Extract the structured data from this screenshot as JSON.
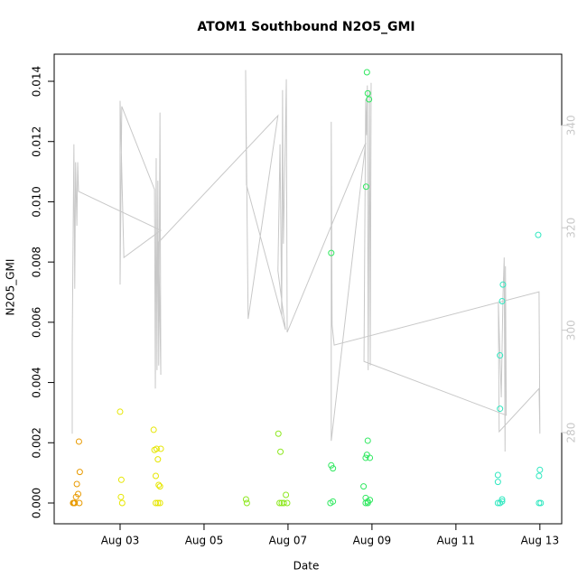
{
  "chart_data": {
    "type": "scatter",
    "title": "ATOM1 Southbound N2O5_GMI",
    "xlabel": "Date",
    "ylabel": "N2O5_GMI",
    "xlim": [
      1.43,
      13.52
    ],
    "xticks": [
      {
        "value": 3,
        "label": "Aug 03"
      },
      {
        "value": 5,
        "label": "Aug 05"
      },
      {
        "value": 7,
        "label": "Aug 07"
      },
      {
        "value": 9,
        "label": "Aug 09"
      },
      {
        "value": 11,
        "label": "Aug 11"
      },
      {
        "value": 13,
        "label": "Aug 13"
      }
    ],
    "ylim": [
      -0.00069,
      0.0149
    ],
    "yticks": [
      {
        "value": 0,
        "label": "0.000"
      },
      {
        "value": 0.002,
        "label": "0.002"
      },
      {
        "value": 0.004,
        "label": "0.004"
      },
      {
        "value": 0.006,
        "label": "0.006"
      },
      {
        "value": 0.008,
        "label": "0.008"
      },
      {
        "value": 0.01,
        "label": "0.010"
      },
      {
        "value": 0.012,
        "label": "0.012"
      },
      {
        "value": 0.014,
        "label": "0.014"
      }
    ],
    "y2lim": [
      262.2,
      353.9
    ],
    "y2ticks": [
      280,
      300,
      320,
      340
    ],
    "y2color": "#c8c8c8",
    "series": [
      {
        "type": "line",
        "axis": "y2",
        "color": "#c8c8c8",
        "x": [
          1.86,
          1.86,
          1.9,
          1.92,
          1.94,
          1.97,
          1.99,
          2.01,
          3.97,
          3.09,
          3.0,
          3.0,
          3.04,
          3.82,
          3.84,
          3.86,
          3.88,
          3.9,
          3.92,
          3.95,
          3.97,
          3.92,
          6.76,
          6.05,
          5.99,
          6.01,
          6.94,
          6.76,
          6.81,
          6.85,
          6.87,
          6.89,
          6.94,
          6.96,
          6.98,
          8.85,
          8.03,
          8.03,
          8.05,
          8.1,
          12.98,
          13.0,
          12.98,
          12.03,
          12.01,
          12.08,
          12.12,
          12.15,
          12.17,
          12.18,
          12.2,
          8.81,
          8.85,
          8.87,
          8.89,
          8.91,
          8.94,
          8.96,
          8.98
        ],
        "values": [
          279.8,
          297.5,
          336.3,
          308.1,
          332.8,
          320.4,
          332.8,
          327.1,
          319.5,
          314.2,
          344.8,
          308.9,
          343.7,
          327.5,
          288.6,
          333.6,
          292.2,
          329.2,
          293.1,
          342.5,
          291.3,
          317.2,
          341.9,
          302.2,
          350.8,
          328.4,
          300.1,
          311.6,
          336.3,
          302.8,
          346.9,
          316.9,
          338.9,
          349.0,
          299.6,
          336.6,
          278.4,
          340.7,
          301.0,
          297.1,
          307.5,
          279.8,
          288.6,
          280.2,
          305.4,
          286.9,
          306.3,
          314.2,
          276.3,
          312.5,
          283.4,
          293.9,
          345.1,
          338.1,
          347.8,
          292.2,
          346.9,
          293.1,
          348.3
        ]
      },
      {
        "type": "scatter",
        "color": "#e89a00",
        "x": [
          1.88,
          1.9,
          1.92,
          1.95,
          1.97,
          2.0,
          2.02,
          2.04,
          2.03
        ],
        "values": [
          0,
          0,
          0,
          0.0002,
          0.00063,
          0.0003,
          0.00204,
          0.00103,
          0
        ]
      },
      {
        "type": "scatter",
        "color": "#e6e600",
        "x": [
          3.0,
          3.03,
          3.02,
          3.05,
          3.8,
          3.82,
          3.85,
          3.87,
          3.9,
          3.92,
          3.95,
          3.97,
          3.85,
          3.9,
          3.95
        ],
        "values": [
          0.00303,
          0.00077,
          0.0002,
          0,
          0.00243,
          0.00176,
          0.0009,
          0.0018,
          0.00145,
          0.0006,
          0.00055,
          0.0018,
          0,
          0,
          0
        ]
      },
      {
        "type": "scatter",
        "color": "#8ee820",
        "x": [
          6.0,
          6.02,
          6.77,
          6.82,
          6.8,
          6.85,
          6.9,
          6.95,
          6.98
        ],
        "values": [
          0.00012,
          0,
          0.0023,
          0.0017,
          0,
          0,
          0,
          0.00027,
          0
        ]
      },
      {
        "type": "scatter",
        "color": "#30e860",
        "x": [
          8.03,
          8.03,
          8.07,
          8.01,
          8.07,
          8.88,
          8.9,
          8.93,
          8.86,
          8.9,
          8.88,
          8.85,
          8.95,
          8.8,
          8.85,
          8.9,
          8.95,
          8.85,
          8.9
        ],
        "values": [
          0.0083,
          0.00125,
          0.00115,
          0,
          5e-05,
          0.0143,
          0.0136,
          0.0134,
          0.0105,
          0.00207,
          0.0016,
          0.0015,
          0.0015,
          0.00055,
          0.00017,
          5e-05,
          0.0001,
          0,
          0
        ]
      },
      {
        "type": "scatter",
        "color": "#30e8c0",
        "x": [
          12.0,
          12.0,
          12.05,
          12.05,
          12.1,
          12.12,
          12.0,
          12.05,
          12.1,
          12.1,
          12.96,
          13.0,
          12.98,
          12.98,
          13.02
        ],
        "values": [
          0.00093,
          0.0007,
          0.00313,
          0.0049,
          0.0067,
          0.00725,
          0,
          0,
          0.00012,
          5e-05,
          0.0089,
          0.0011,
          0.0009,
          0,
          0
        ]
      }
    ]
  }
}
